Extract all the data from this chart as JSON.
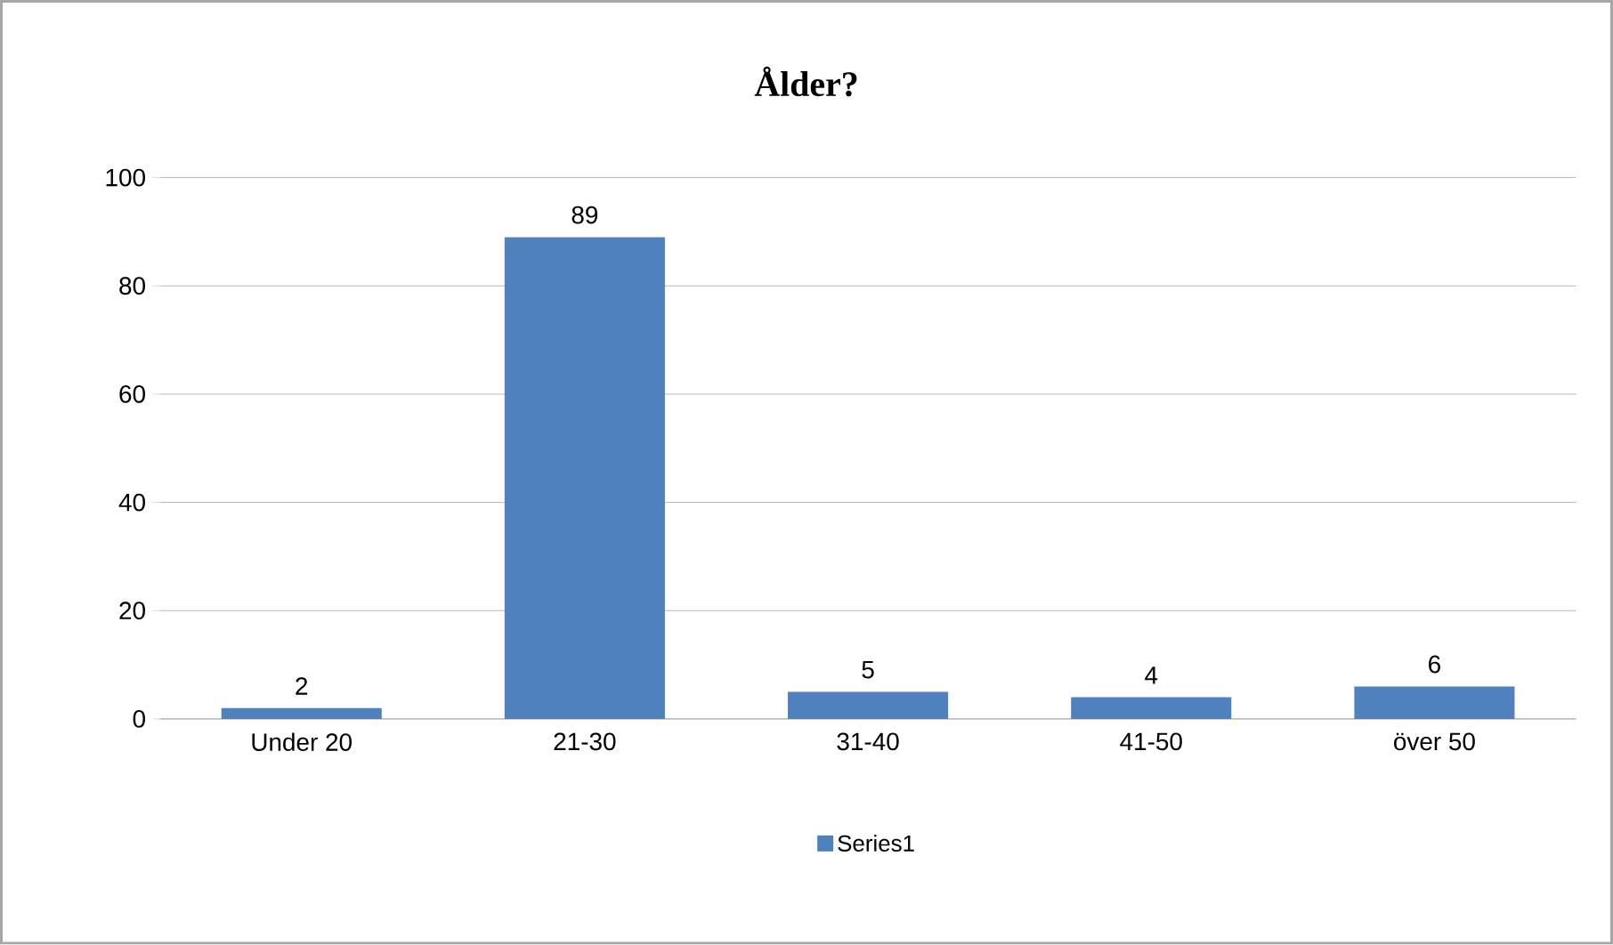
{
  "chart_data": {
    "type": "bar",
    "title": "Ålder?",
    "categories": [
      "Under 20",
      "21-30",
      "31-40",
      "41-50",
      "över 50"
    ],
    "series": [
      {
        "name": "Series1",
        "color": "#4f81bd",
        "values": [
          2,
          89,
          5,
          4,
          6
        ]
      }
    ],
    "ylim": [
      0,
      100
    ],
    "yticks": [
      0,
      20,
      40,
      60,
      80,
      100
    ],
    "grid": "y",
    "legend": "bottom",
    "data_labels": true
  }
}
